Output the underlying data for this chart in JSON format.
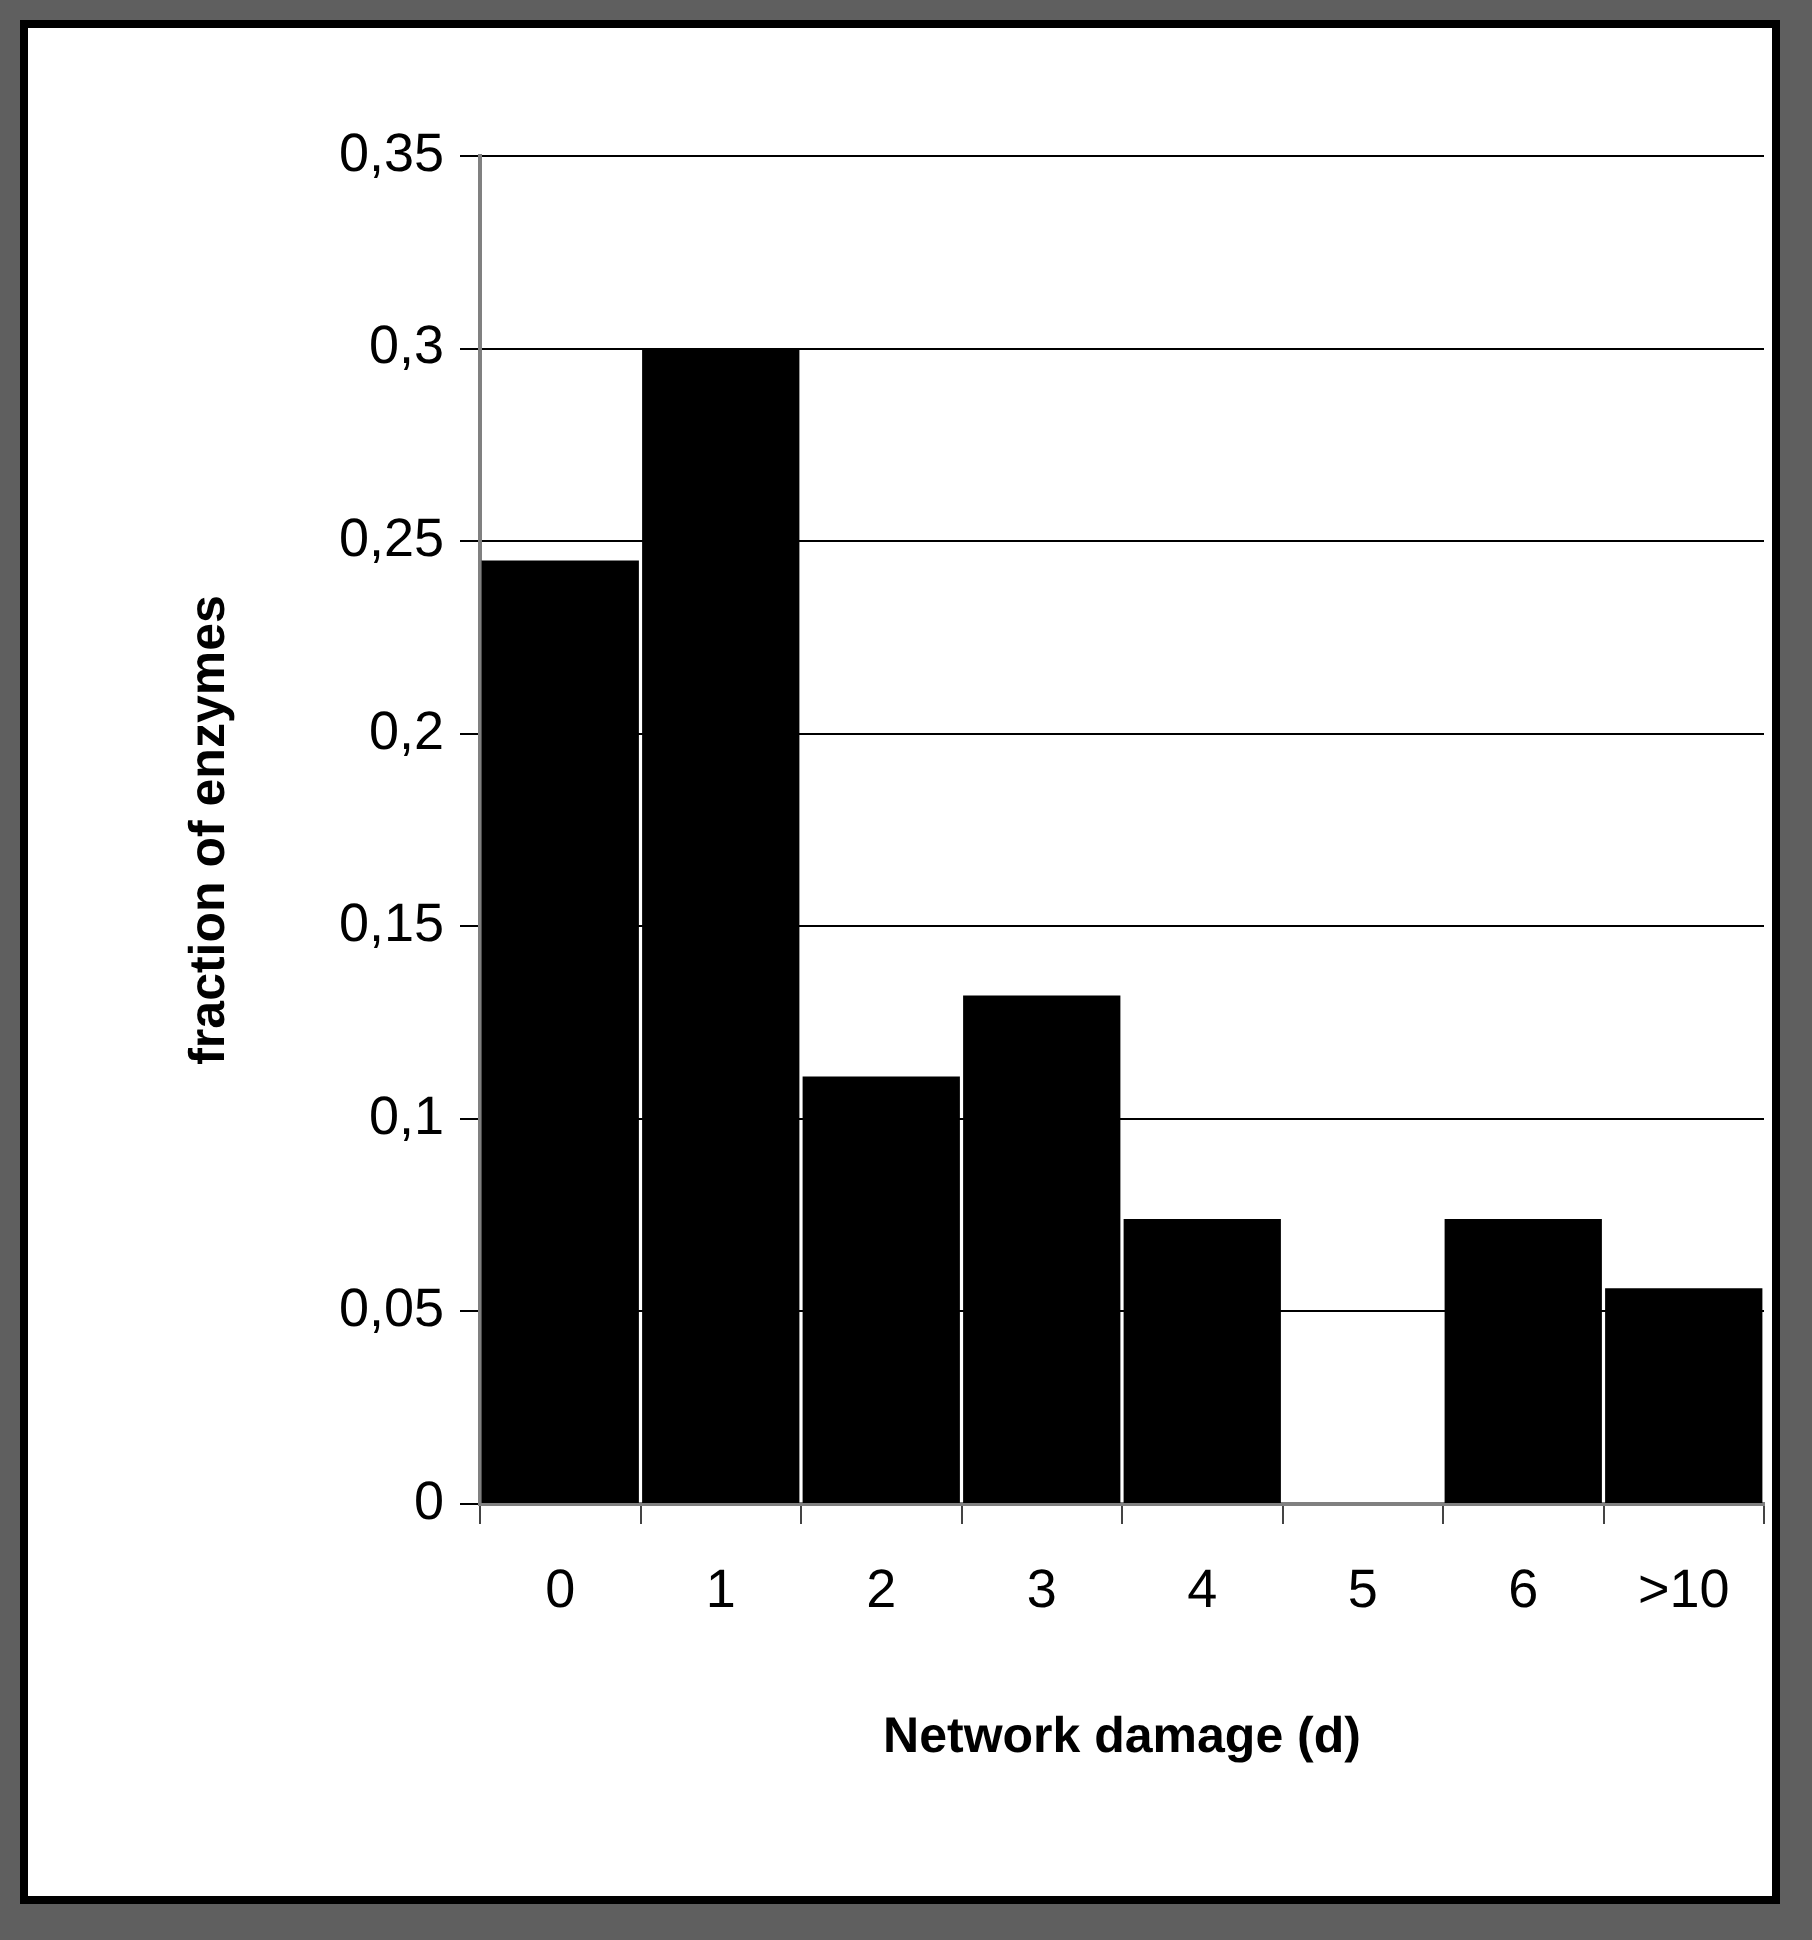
{
  "chart_data": {
    "type": "bar",
    "xlabel": "Network damage (d)",
    "ylabel": "fraction of enzymes",
    "categories": [
      "0",
      "1",
      "2",
      "3",
      "4",
      "5",
      "6",
      ">10"
    ],
    "values": [
      0.245,
      0.3,
      0.111,
      0.132,
      0.074,
      0,
      0.074,
      0.056
    ],
    "color": "#000000",
    "ylim": [
      0,
      0.35
    ],
    "yticks": [
      0,
      {
        "value": 0.05,
        "label": "0,05"
      },
      {
        "value": 0.1,
        "label": "0,1"
      },
      {
        "value": 0.15,
        "label": "0,15"
      },
      {
        "value": 0.2,
        "label": "0,2"
      },
      {
        "value": 0.25,
        "label": "0,25"
      },
      {
        "value": 0.3,
        "label": "0,3"
      },
      {
        "value": 0.35,
        "label": "0,35"
      }
    ],
    "grid": "y",
    "legend": false
  }
}
